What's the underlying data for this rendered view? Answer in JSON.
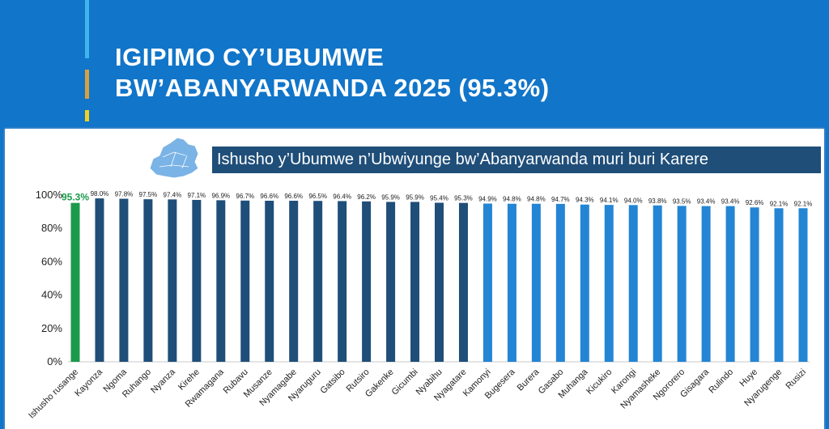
{
  "header": {
    "title_line1": "IGIPIMO CY’UBUMWE",
    "title_line2": "BW’ABANYARWANDA 2025 (95.3%)"
  },
  "colors": {
    "header_bg": "#1175c9",
    "highlight_bar": "#1c9a4b",
    "above_avg_bar": "#1f4e79",
    "below_avg_bar": "#2385d4",
    "subtitle_bg": "#1f4e79"
  },
  "map_icon": "rwanda-map-icon",
  "chart_data": {
    "type": "bar",
    "title": "Ishusho y’Ubumwe n’Ubwiyunge bw’Abanyarwanda muri buri Karere",
    "xlabel": "",
    "ylabel": "",
    "ylim": [
      0,
      100
    ],
    "yticks": [
      "0%",
      "20%",
      "40%",
      "60%",
      "80%",
      "100%"
    ],
    "grid": false,
    "categories": [
      "Ishusho rusange",
      "Kayonza",
      "Ngoma",
      "Ruhango",
      "Nyanza",
      "Kirehe",
      "Rwamagana",
      "Rubavu",
      "Musanze",
      "Nyamagabe",
      "Nyaruguru",
      "Gatsibo",
      "Rutsiro",
      "Gakenke",
      "Gicumbi",
      "Nyabihu",
      "Nyagatare",
      "Kamonyi",
      "Bugesera",
      "Burera",
      "Gasabo",
      "Muhanga",
      "Kicukiro",
      "Karongi",
      "Nyamasheke",
      "Ngororero",
      "Gisagara",
      "Rulindo",
      "Huye",
      "Nyarugenge",
      "Rusizi"
    ],
    "values": [
      95.3,
      98.0,
      97.8,
      97.5,
      97.4,
      97.1,
      96.9,
      96.7,
      96.6,
      96.6,
      96.5,
      96.4,
      96.2,
      95.9,
      95.9,
      95.4,
      95.3,
      94.9,
      94.8,
      94.8,
      94.7,
      94.3,
      94.1,
      94.0,
      93.8,
      93.5,
      93.4,
      93.4,
      92.6,
      92.1,
      92.1
    ],
    "labels": [
      "95.3%",
      "98.0%",
      "97.8%",
      "97.5%",
      "97.4%",
      "97.1%",
      "96.9%",
      "96.7%",
      "96.6%",
      "96.6%",
      "96.5%",
      "96.4%",
      "96.2%",
      "95.9%",
      "95.9%",
      "95.4%",
      "95.3%",
      "94.9%",
      "94.8%",
      "94.8%",
      "94.7%",
      "94.3%",
      "94.1%",
      "94.0%",
      "93.8%",
      "93.5%",
      "93.4%",
      "93.4%",
      "92.6%",
      "92.1%",
      "92.1%"
    ]
  }
}
